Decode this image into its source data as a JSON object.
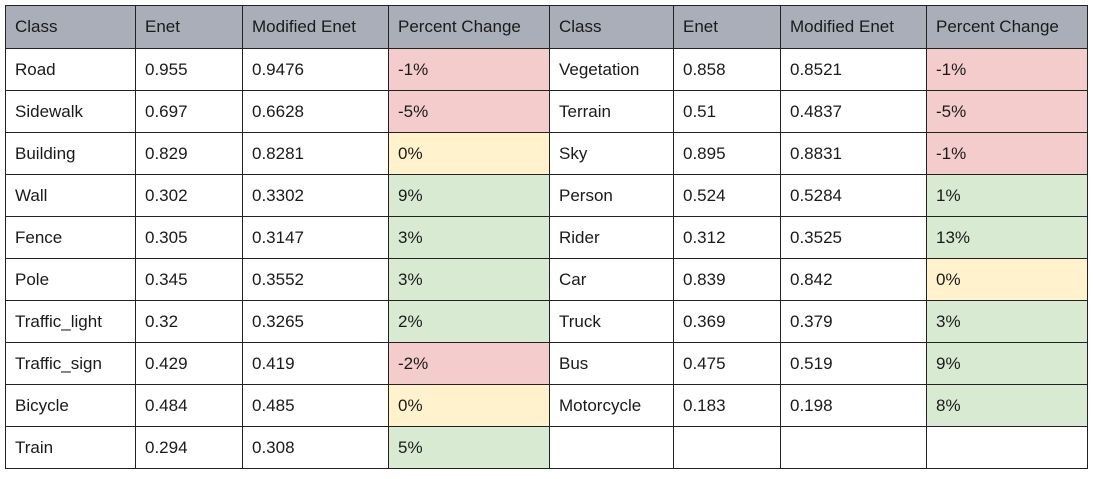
{
  "table": {
    "headers": [
      "Class",
      "Enet",
      "Modified Enet",
      "Percent Change",
      "Class",
      "Enet",
      "Modified Enet",
      "Percent Change"
    ],
    "status_colors": {
      "negative": "#f4cccc",
      "zero": "#fff2cc",
      "positive": "#d9ead3",
      "header": "#a9aeb9"
    },
    "rows": [
      [
        {
          "text": "Road"
        },
        {
          "text": "0.955"
        },
        {
          "text": "0.9476"
        },
        {
          "text": "-1%",
          "status": "bad"
        },
        {
          "text": "Vegetation"
        },
        {
          "text": "0.858"
        },
        {
          "text": "0.8521"
        },
        {
          "text": "-1%",
          "status": "bad"
        }
      ],
      [
        {
          "text": "Sidewalk"
        },
        {
          "text": "0.697"
        },
        {
          "text": "0.6628"
        },
        {
          "text": "-5%",
          "status": "bad"
        },
        {
          "text": "Terrain"
        },
        {
          "text": "0.51"
        },
        {
          "text": "0.4837"
        },
        {
          "text": "-5%",
          "status": "bad"
        }
      ],
      [
        {
          "text": "Building"
        },
        {
          "text": "0.829"
        },
        {
          "text": "0.8281"
        },
        {
          "text": "0%",
          "status": "neu"
        },
        {
          "text": "Sky"
        },
        {
          "text": "0.895"
        },
        {
          "text": "0.8831"
        },
        {
          "text": "-1%",
          "status": "bad"
        }
      ],
      [
        {
          "text": "Wall"
        },
        {
          "text": "0.302"
        },
        {
          "text": "0.3302"
        },
        {
          "text": "9%",
          "status": "good"
        },
        {
          "text": "Person"
        },
        {
          "text": "0.524"
        },
        {
          "text": "0.5284"
        },
        {
          "text": "1%",
          "status": "good"
        }
      ],
      [
        {
          "text": "Fence"
        },
        {
          "text": "0.305"
        },
        {
          "text": "0.3147"
        },
        {
          "text": "3%",
          "status": "good"
        },
        {
          "text": "Rider"
        },
        {
          "text": "0.312"
        },
        {
          "text": "0.3525"
        },
        {
          "text": "13%",
          "status": "good"
        }
      ],
      [
        {
          "text": "Pole"
        },
        {
          "text": "0.345"
        },
        {
          "text": "0.3552"
        },
        {
          "text": "3%",
          "status": "good"
        },
        {
          "text": "Car"
        },
        {
          "text": "0.839"
        },
        {
          "text": "0.842"
        },
        {
          "text": "0%",
          "status": "neu"
        }
      ],
      [
        {
          "text": "Traffic_light"
        },
        {
          "text": "0.32"
        },
        {
          "text": "0.3265"
        },
        {
          "text": "2%",
          "status": "good"
        },
        {
          "text": "Truck"
        },
        {
          "text": "0.369"
        },
        {
          "text": "0.379"
        },
        {
          "text": "3%",
          "status": "good"
        }
      ],
      [
        {
          "text": "Traffic_sign"
        },
        {
          "text": "0.429"
        },
        {
          "text": "0.419"
        },
        {
          "text": "-2%",
          "status": "bad"
        },
        {
          "text": "Bus"
        },
        {
          "text": "0.475"
        },
        {
          "text": "0.519"
        },
        {
          "text": "9%",
          "status": "good"
        }
      ],
      [
        {
          "text": "Bicycle"
        },
        {
          "text": "0.484"
        },
        {
          "text": "0.485"
        },
        {
          "text": "0%",
          "status": "neu"
        },
        {
          "text": "Motorcycle"
        },
        {
          "text": "0.183"
        },
        {
          "text": "0.198"
        },
        {
          "text": "8%",
          "status": "good"
        }
      ],
      [
        {
          "text": "Train"
        },
        {
          "text": "0.294"
        },
        {
          "text": "0.308"
        },
        {
          "text": "5%",
          "status": "good"
        },
        {
          "text": ""
        },
        {
          "text": ""
        },
        {
          "text": ""
        },
        {
          "text": ""
        }
      ]
    ]
  }
}
